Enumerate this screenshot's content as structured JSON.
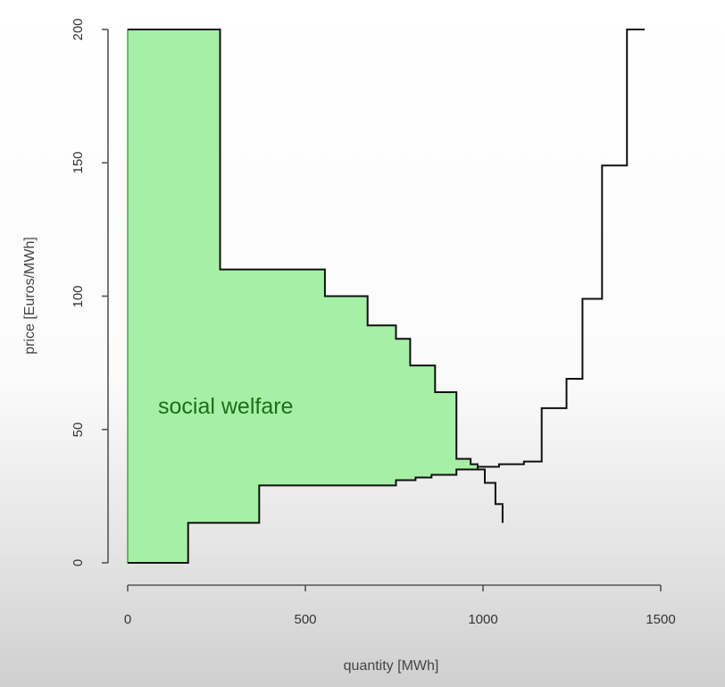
{
  "chart_data": {
    "type": "line",
    "xlabel": "quantity [MWh]",
    "ylabel": "price [Euros/MWh]",
    "xlim": [
      0,
      1500
    ],
    "ylim": [
      0,
      200
    ],
    "xticks": [
      "0",
      "500",
      "1000",
      "1500"
    ],
    "yticks": [
      "0",
      "50",
      "100",
      "150",
      "200"
    ],
    "grid": false,
    "annotation": "social welfare",
    "annotation_color": "#1b6e1b",
    "area_color": "#a6f0a6",
    "series": [
      {
        "role": "demand",
        "color": "#111111",
        "x": [
          0,
          260,
          260,
          555,
          555,
          675,
          675,
          755,
          755,
          795,
          795,
          865,
          865,
          925,
          925,
          965,
          965,
          985,
          985,
          1005,
          1005,
          1035,
          1035,
          1055,
          1055
        ],
        "y": [
          200,
          200,
          110,
          110,
          100,
          100,
          89,
          89,
          84,
          84,
          74,
          74,
          64,
          64,
          39,
          39,
          37,
          37,
          35,
          35,
          30,
          30,
          22,
          22,
          15
        ]
      },
      {
        "role": "supply",
        "color": "#111111",
        "x": [
          0,
          170,
          170,
          370,
          370,
          755,
          755,
          810,
          810,
          855,
          855,
          925,
          925,
          985,
          985,
          1045,
          1045,
          1115,
          1115,
          1165,
          1165,
          1235,
          1235,
          1280,
          1280,
          1335,
          1335,
          1405,
          1405,
          1455
        ],
        "y": [
          0,
          0,
          15,
          15,
          29,
          29,
          31,
          31,
          32,
          32,
          33,
          33,
          35,
          35,
          36,
          36,
          37,
          37,
          38,
          38,
          58,
          58,
          69,
          69,
          99,
          99,
          149,
          149,
          200,
          200
        ]
      }
    ],
    "equilibrium": {
      "x": 985,
      "y": 36
    }
  }
}
